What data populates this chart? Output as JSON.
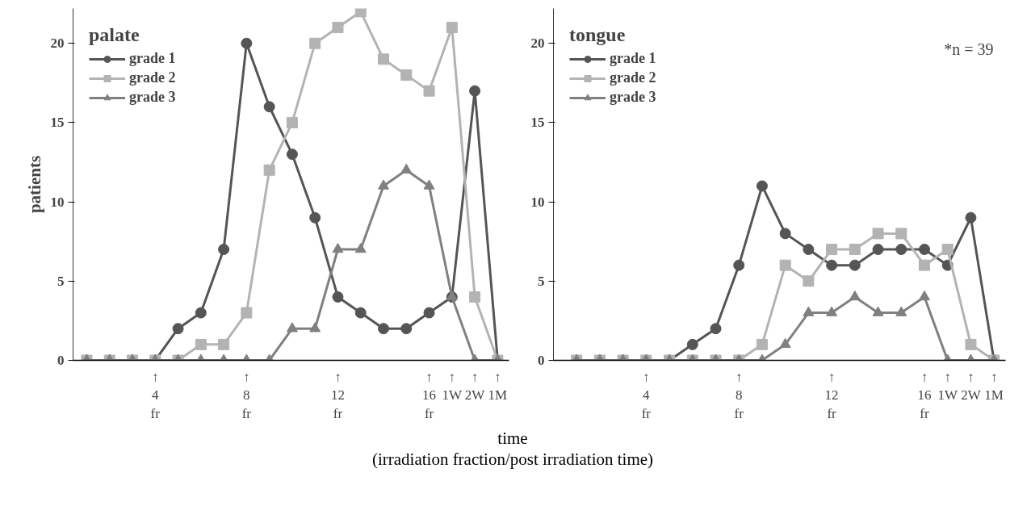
{
  "chart_data": [
    {
      "type": "line",
      "legend_title": "palate",
      "ylabel": "patients",
      "xlabel": "time\n(irradiation fraction/post irradiation time)",
      "categories": [
        null,
        null,
        null,
        "↑\n4\nfr",
        null,
        null,
        null,
        "↑\n8\nfr",
        null,
        null,
        null,
        "↑\n12\nfr",
        null,
        null,
        null,
        "↑\n16\nfr",
        "↑\n1W",
        "↑\n2W",
        "↑\n1M"
      ],
      "ylim": [
        0,
        22.2
      ],
      "yticks": [
        0,
        5,
        10,
        15,
        20
      ],
      "grid": false,
      "legend": "top left",
      "series": [
        {
          "name": "grade 1",
          "color": "#555555",
          "marker": "circle",
          "values": [
            0,
            0,
            0,
            0,
            2,
            3,
            7,
            20,
            16,
            13,
            9,
            4,
            3,
            2,
            2,
            3,
            4,
            17,
            0
          ]
        },
        {
          "name": "grade 2",
          "color": "#b3b3b3",
          "marker": "square",
          "values": [
            0,
            0,
            0,
            0,
            0,
            1,
            1,
            3,
            12,
            15,
            20,
            21,
            22,
            19,
            18,
            17,
            21,
            4,
            0
          ]
        },
        {
          "name": "grade 3",
          "color": "#808080",
          "marker": "triangle",
          "values": [
            0,
            0,
            0,
            0,
            0,
            0,
            0,
            0,
            0,
            2,
            2,
            7,
            7,
            11,
            12,
            11,
            4,
            0,
            0
          ]
        }
      ]
    },
    {
      "type": "line",
      "legend_title": "tongue",
      "annotations": [
        "*n = 39"
      ],
      "categories": [
        null,
        null,
        null,
        "↑\n4\nfr",
        null,
        null,
        null,
        "↑\n8\nfr",
        null,
        null,
        null,
        "↑\n12\nfr",
        null,
        null,
        null,
        "↑\n16\nfr",
        "↑\n1W",
        "↑\n2W",
        "↑\n1M"
      ],
      "ylim": [
        0,
        22.2
      ],
      "yticks": [
        0,
        5,
        10,
        15,
        20
      ],
      "grid": false,
      "legend": "top left",
      "series": [
        {
          "name": "grade 1",
          "color": "#555555",
          "marker": "circle",
          "values": [
            0,
            0,
            0,
            0,
            0,
            1,
            2,
            6,
            11,
            8,
            7,
            6,
            6,
            7,
            7,
            7,
            6,
            9,
            0
          ]
        },
        {
          "name": "grade 2",
          "color": "#b3b3b3",
          "marker": "square",
          "values": [
            0,
            0,
            0,
            0,
            0,
            0,
            0,
            0,
            1,
            6,
            5,
            7,
            7,
            8,
            8,
            6,
            7,
            1,
            0
          ]
        },
        {
          "name": "grade 3",
          "color": "#808080",
          "marker": "triangle",
          "values": [
            0,
            0,
            0,
            0,
            0,
            0,
            0,
            0,
            0,
            1,
            3,
            3,
            4,
            3,
            3,
            4,
            0,
            0,
            0
          ]
        }
      ]
    }
  ]
}
